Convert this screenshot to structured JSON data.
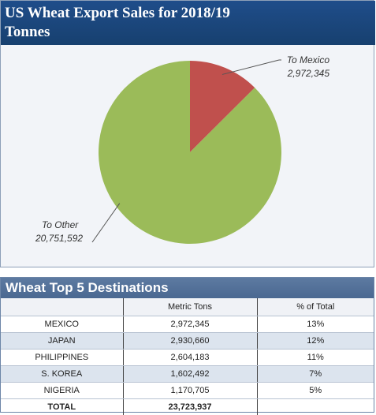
{
  "title": {
    "line1": "US Wheat Export Sales for 2018/19",
    "line2": "Tonnes"
  },
  "chart_data": {
    "type": "pie",
    "title": "US Wheat Export Sales for 2018/19 Tonnes",
    "categories": [
      "To Mexico",
      "To Other"
    ],
    "values": [
      2972345,
      20751592
    ],
    "value_labels": [
      "2,972,345",
      "20,751,592"
    ],
    "colors": [
      "#c0504d",
      "#9bbb59"
    ]
  },
  "table": {
    "title": "Wheat Top 5 Destinations",
    "headers": [
      "",
      "Metric Tons",
      "% of Total"
    ],
    "rows": [
      [
        "MEXICO",
        "2,972,345",
        "13%"
      ],
      [
        "JAPAN",
        "2,930,660",
        "12%"
      ],
      [
        "PHILIPPINES",
        "2,604,183",
        "11%"
      ],
      [
        "S. KOREA",
        "1,602,492",
        "7%"
      ],
      [
        "NIGERIA",
        "1,170,705",
        "5%"
      ],
      [
        "TOTAL",
        "23,723,937",
        ""
      ]
    ]
  }
}
